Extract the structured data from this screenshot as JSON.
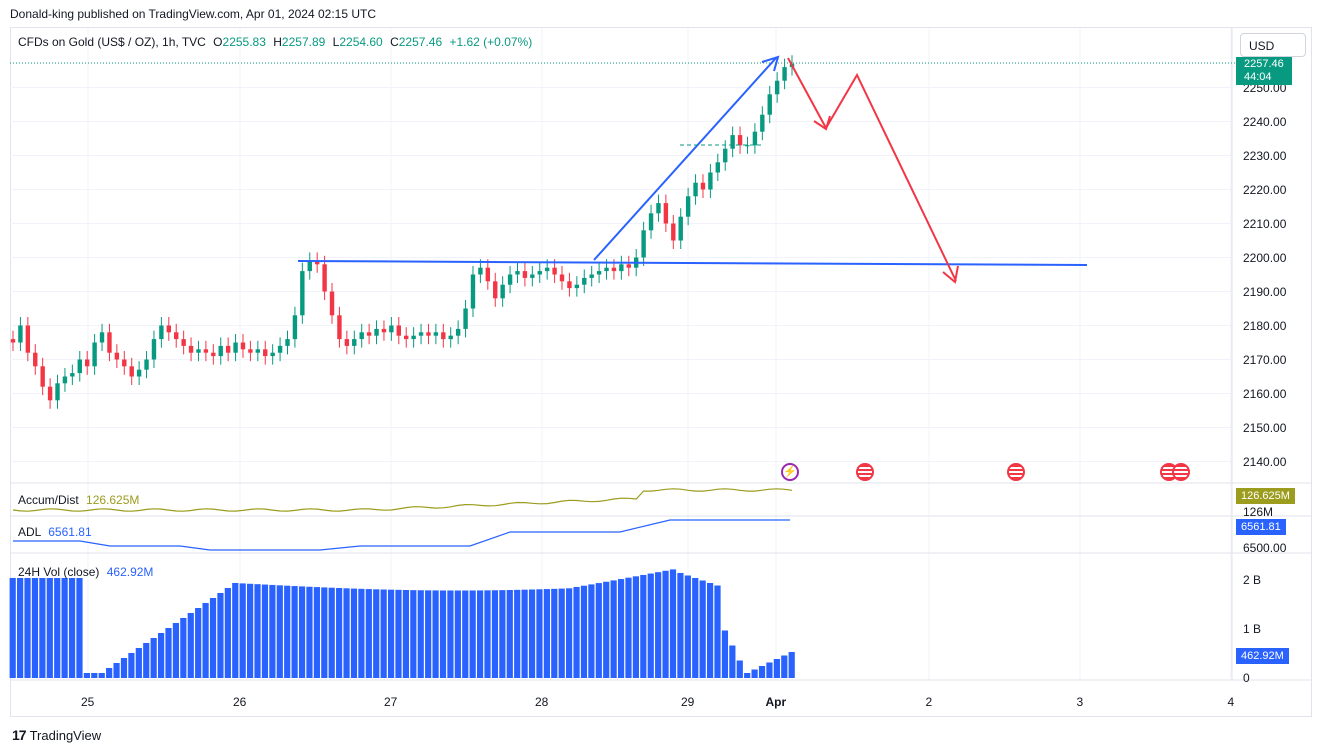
{
  "caption": "Donald-king published on TradingView.com, Apr 01, 2024 02:15 UTC",
  "legend": {
    "symbol": "CFDs on Gold (US$ / OZ), 1h, TVC",
    "open_label": "O",
    "open": "2255.83",
    "high_label": "H",
    "high": "2257.89",
    "low_label": "L",
    "low": "2254.60",
    "close_label": "C",
    "close": "2257.46",
    "change": "+1.62 (+0.07%)"
  },
  "currency_button": "USD",
  "price_tag": {
    "price": "2257.46",
    "countdown": "44:04"
  },
  "price_axis": [
    "2250.00",
    "2240.00",
    "2230.00",
    "2220.00",
    "2210.00",
    "2200.00",
    "2190.00",
    "2180.00",
    "2170.00",
    "2160.00",
    "2150.00",
    "2140.00"
  ],
  "time_axis": [
    "25",
    "26",
    "27",
    "28",
    "29",
    "Apr",
    "2",
    "3",
    "4"
  ],
  "indicators": {
    "accum": {
      "name": "Accum/Dist",
      "value": "126.625M",
      "tag": "126.625M",
      "axis": "126M",
      "color": "#9c9c1e"
    },
    "adl": {
      "name": "ADL",
      "value": "6561.81",
      "tag": "6561.81",
      "axis": "6500.00",
      "color": "#2962ff"
    },
    "vol": {
      "name": "24H Vol (close)",
      "value": "462.92M",
      "tag": "462.92M",
      "axis_top": "2 B",
      "axis_mid": "1 B",
      "axis_bottom": "0",
      "color": "#2962ff"
    }
  },
  "colors": {
    "up": "#089981",
    "down": "#f23645",
    "blue_line": "#2962ff",
    "red_projection": "#f23645"
  },
  "footer": {
    "brand": "TradingView"
  }
}
